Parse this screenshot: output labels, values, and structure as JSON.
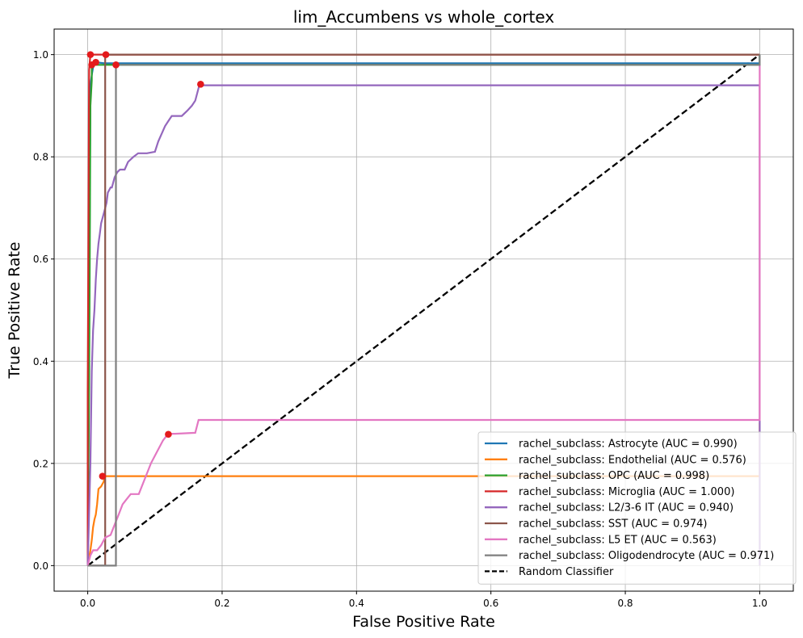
{
  "chart_data": {
    "type": "line",
    "title": "lim_Accumbens vs whole_cortex",
    "xlabel": "False Positive Rate",
    "ylabel": "True Positive Rate",
    "xlim": [
      -0.05,
      1.05
    ],
    "ylim": [
      -0.05,
      1.05
    ],
    "xticks": [
      0.0,
      0.2,
      0.4,
      0.6,
      0.8,
      1.0
    ],
    "yticks": [
      0.0,
      0.2,
      0.4,
      0.6,
      0.8,
      1.0
    ],
    "xtick_labels": [
      "0.0",
      "0.2",
      "0.4",
      "0.6",
      "0.8",
      "1.0"
    ],
    "ytick_labels": [
      "0.0",
      "0.2",
      "0.4",
      "0.6",
      "0.8",
      "1.0"
    ],
    "grid": true,
    "legend_position": "lower-right",
    "series": [
      {
        "name": "rachel_subclass: Astrocyte (AUC = 0.990)",
        "color": "#1f77b4",
        "x": [
          0.0,
          0.004,
          0.006,
          0.008,
          0.012,
          0.025,
          1.0,
          1.0
        ],
        "y": [
          0.0,
          0.94,
          0.96,
          0.975,
          0.985,
          0.983,
          0.983,
          1.0
        ],
        "marker": [
          0.012,
          0.985
        ]
      },
      {
        "name": "rachel_subclass: Endothelial (AUC = 0.576)",
        "color": "#ff7f0e",
        "x": [
          0.0,
          0.004,
          0.006,
          0.008,
          0.01,
          0.012,
          0.014,
          0.016,
          0.02,
          0.022,
          0.024,
          0.024,
          1.0,
          1.0
        ],
        "y": [
          0.0,
          0.03,
          0.05,
          0.075,
          0.09,
          0.1,
          0.12,
          0.15,
          0.155,
          0.16,
          0.165,
          0.175,
          0.175,
          0.28
        ],
        "marker": [
          0.022,
          0.175
        ]
      },
      {
        "name": "rachel_subclass: OPC (AUC = 0.998)",
        "color": "#2ca02c",
        "x": [
          0.0,
          0.002,
          0.003,
          0.004,
          0.006,
          0.006,
          1.0,
          1.0
        ],
        "y": [
          0.0,
          0.35,
          0.6,
          0.9,
          0.95,
          0.98,
          0.98,
          1.0
        ],
        "marker": [
          0.006,
          0.98
        ]
      },
      {
        "name": "rachel_subclass: Microglia (AUC = 1.000)",
        "color": "#d62728",
        "x": [
          0.0,
          0.0,
          0.002,
          0.004,
          1.0
        ],
        "y": [
          0.0,
          0.34,
          0.97,
          1.0,
          1.0
        ],
        "marker": [
          0.004,
          1.0
        ]
      },
      {
        "name": "rachel_subclass: L2/3-6 IT (AUC = 0.940)",
        "color": "#9467bd",
        "x": [
          0.0,
          0.004,
          0.006,
          0.008,
          0.01,
          0.012,
          0.014,
          0.016,
          0.018,
          0.02,
          0.024,
          0.028,
          0.03,
          0.034,
          0.036,
          0.04,
          0.044,
          0.048,
          0.055,
          0.06,
          0.068,
          0.075,
          0.08,
          0.088,
          0.1,
          0.105,
          0.11,
          0.115,
          0.12,
          0.125,
          0.13,
          0.14,
          0.148,
          0.155,
          0.16,
          0.163,
          0.166,
          1.0,
          1.0
        ],
        "y": [
          0.0,
          0.2,
          0.38,
          0.46,
          0.5,
          0.56,
          0.6,
          0.63,
          0.65,
          0.67,
          0.69,
          0.71,
          0.73,
          0.74,
          0.74,
          0.76,
          0.77,
          0.775,
          0.775,
          0.79,
          0.8,
          0.807,
          0.807,
          0.807,
          0.81,
          0.83,
          0.845,
          0.86,
          0.87,
          0.88,
          0.88,
          0.88,
          0.89,
          0.9,
          0.91,
          0.925,
          0.94,
          0.94,
          0.0
        ],
        "marker": [
          0.168,
          0.942
        ]
      },
      {
        "name": "rachel_subclass: SST (AUC = 0.974)",
        "color": "#8c564b",
        "x": [
          0.0,
          0.026,
          0.026,
          1.0
        ],
        "y": [
          0.0,
          0.0,
          1.0,
          1.0
        ],
        "marker": [
          0.027,
          1.0
        ]
      },
      {
        "name": "rachel_subclass: L5 ET (AUC = 0.563)",
        "color": "#e377c2",
        "x": [
          0.0,
          0.004,
          0.008,
          0.014,
          0.02,
          0.026,
          0.034,
          0.04,
          0.046,
          0.052,
          0.058,
          0.064,
          0.07,
          0.076,
          0.082,
          0.088,
          0.094,
          0.1,
          0.106,
          0.112,
          0.118,
          0.124,
          0.13,
          0.16,
          0.165,
          1.0,
          1.0
        ],
        "y": [
          0.0,
          0.02,
          0.03,
          0.03,
          0.04,
          0.055,
          0.06,
          0.08,
          0.1,
          0.12,
          0.13,
          0.14,
          0.14,
          0.14,
          0.16,
          0.18,
          0.2,
          0.215,
          0.23,
          0.245,
          0.255,
          0.258,
          0.258,
          0.26,
          0.285,
          0.285,
          0.98
        ],
        "marker": [
          0.12,
          0.257
        ]
      },
      {
        "name": "rachel_subclass: Oligodendrocyte (AUC = 0.971)",
        "color": "#7f7f7f",
        "x": [
          0.0,
          0.042,
          0.042,
          1.0,
          1.0
        ],
        "y": [
          0.0,
          0.0,
          0.98,
          0.98,
          1.0
        ],
        "marker": [
          0.042,
          0.98
        ]
      }
    ],
    "reference_line": {
      "name": "Random Classifier",
      "color": "#000000",
      "x": [
        0,
        1
      ],
      "y": [
        0,
        1
      ],
      "style": "dashed"
    },
    "marker_color": "#e41a1c"
  }
}
